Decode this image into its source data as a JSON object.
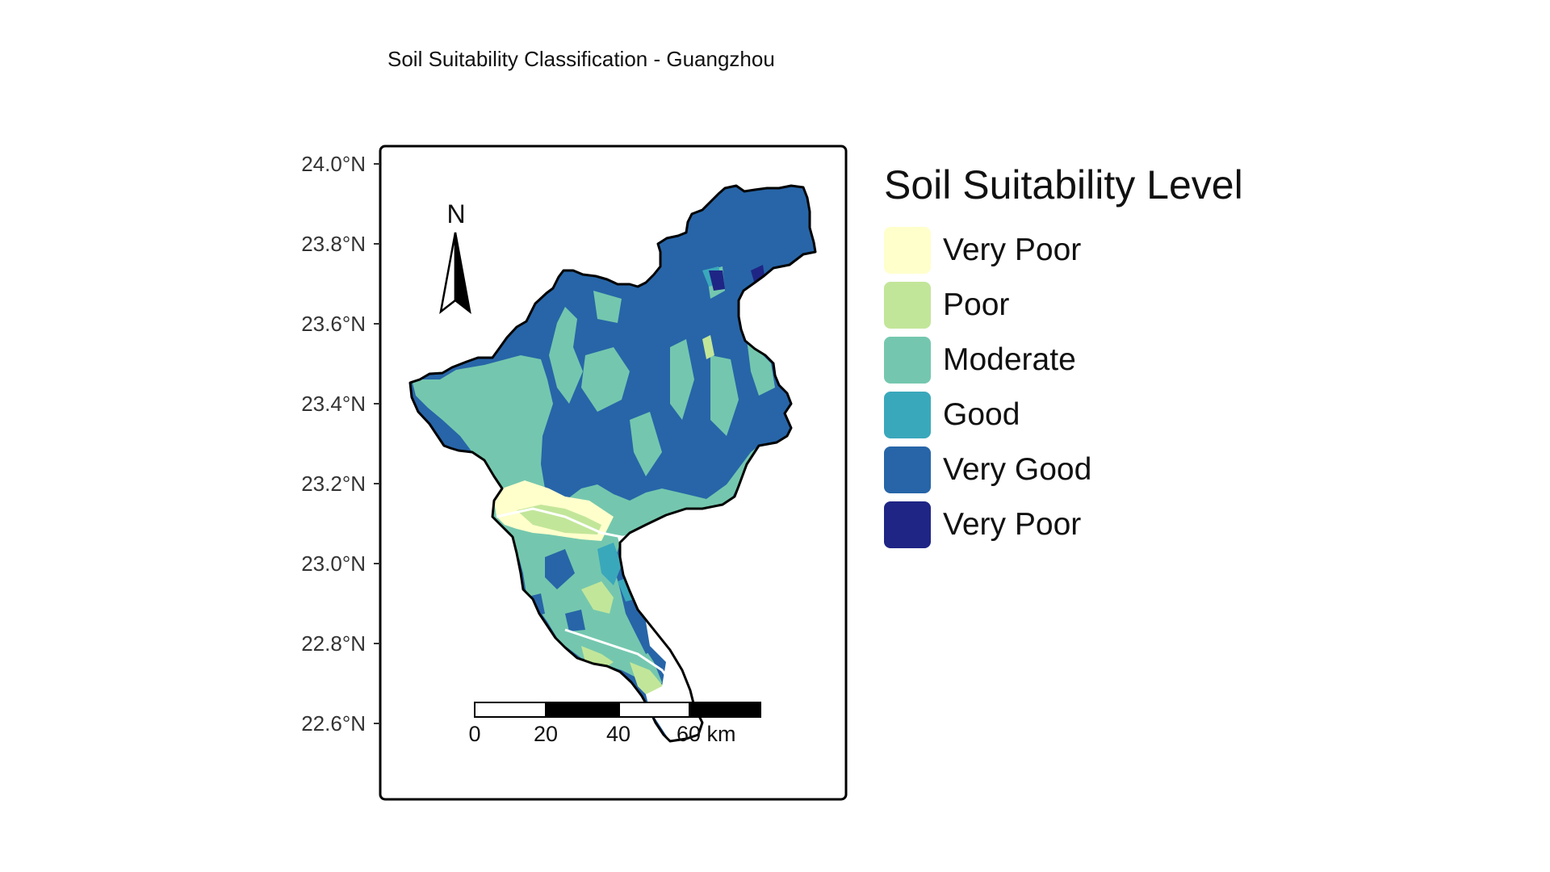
{
  "title": "Soil Suitability Classification - Guangzhou",
  "axis": {
    "y_ticks": [
      "24.0°N",
      "23.8°N",
      "23.6°N",
      "23.4°N",
      "23.2°N",
      "23.0°N",
      "22.8°N",
      "22.6°N"
    ],
    "y_range_deg": [
      22.47,
      24.08
    ]
  },
  "north_arrow": {
    "label": "N"
  },
  "scale_bar": {
    "labels": [
      "0",
      "20",
      "40",
      "60 km"
    ]
  },
  "legend": {
    "title": "Soil Suitability Level",
    "items": [
      {
        "label": "Very Poor",
        "color": "#ffffcc"
      },
      {
        "label": "Poor",
        "color": "#c2e699"
      },
      {
        "label": "Moderate",
        "color": "#74c7ae"
      },
      {
        "label": "Good",
        "color": "#3aa8bb"
      },
      {
        "label": "Very Good",
        "color": "#2765a8"
      },
      {
        "label": "Very Poor",
        "color": "#1f2585"
      }
    ]
  },
  "colors": {
    "very_poor": "#ffffcc",
    "poor": "#c2e699",
    "moderate": "#74c7ae",
    "good": "#3aa8bb",
    "very_good": "#2765a8",
    "very_poor_dark": "#1f2585",
    "outline": "#000000"
  }
}
